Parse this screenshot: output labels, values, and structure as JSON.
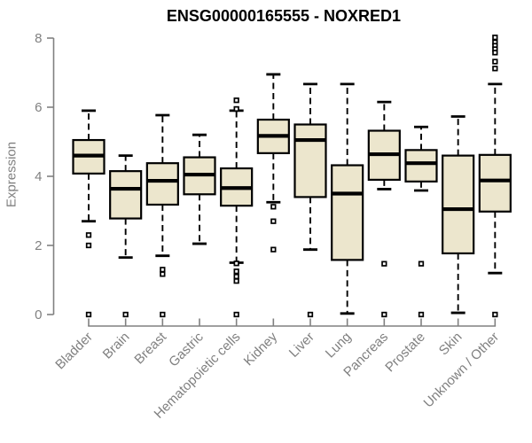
{
  "title": "ENSG00000165555 - NOXRED1",
  "styles": {
    "box_fill": "#ece6cd",
    "box_line_color": "#000000",
    "axis_color": "#808080",
    "label_color": "#808080",
    "title_color": "#000000",
    "background": "#ffffff"
  },
  "chart_data": {
    "type": "box",
    "title": "ENSG00000165555 - NOXRED1",
    "xlabel": "",
    "ylabel": "Expression",
    "ylim": [
      0,
      8
    ],
    "yticks": [
      0,
      2,
      4,
      6,
      8
    ],
    "grid": false,
    "legend": "none",
    "categories": [
      "Bladder",
      "Brain",
      "Breast",
      "Gastric",
      "Hematopoietic cells",
      "Kidney",
      "Liver",
      "Lung",
      "Pancreas",
      "Prostate",
      "Skin",
      "Unknown / Other"
    ],
    "boxes": [
      {
        "category": "Bladder",
        "whisker_low": 2.7,
        "q1": 4.08,
        "median": 4.6,
        "q3": 5.05,
        "whisker_high": 5.9,
        "outliers": [
          2.3,
          2.0,
          0.0
        ]
      },
      {
        "category": "Brain",
        "whisker_low": 1.65,
        "q1": 2.78,
        "median": 3.64,
        "q3": 4.15,
        "whisker_high": 4.6,
        "outliers": [
          0.0
        ]
      },
      {
        "category": "Breast",
        "whisker_low": 1.7,
        "q1": 3.18,
        "median": 3.87,
        "q3": 4.38,
        "whisker_high": 5.77,
        "outliers": [
          1.3,
          1.17,
          0.0
        ]
      },
      {
        "category": "Gastric",
        "whisker_low": 2.05,
        "q1": 3.48,
        "median": 4.05,
        "q3": 4.55,
        "whisker_high": 5.2,
        "outliers": []
      },
      {
        "category": "Hematopoietic cells",
        "whisker_low": 1.5,
        "q1": 3.15,
        "median": 3.66,
        "q3": 4.23,
        "whisker_high": 5.9,
        "outliers": [
          6.2,
          5.95,
          1.48,
          1.25,
          1.1,
          0.97,
          0.0
        ]
      },
      {
        "category": "Kidney",
        "whisker_low": 3.25,
        "q1": 4.67,
        "median": 5.17,
        "q3": 5.64,
        "whisker_high": 6.95,
        "outliers": [
          3.12,
          2.7,
          1.88
        ]
      },
      {
        "category": "Liver",
        "whisker_low": 1.88,
        "q1": 3.4,
        "median": 5.05,
        "q3": 5.5,
        "whisker_high": 6.67,
        "outliers": [
          0.0
        ]
      },
      {
        "category": "Lung",
        "whisker_low": 0.03,
        "q1": 1.58,
        "median": 3.5,
        "q3": 4.32,
        "whisker_high": 6.67,
        "outliers": []
      },
      {
        "category": "Pancreas",
        "whisker_low": 3.63,
        "q1": 3.9,
        "median": 4.64,
        "q3": 5.32,
        "whisker_high": 6.15,
        "outliers": [
          1.47,
          0.0
        ]
      },
      {
        "category": "Prostate",
        "whisker_low": 3.59,
        "q1": 3.85,
        "median": 4.38,
        "q3": 4.76,
        "whisker_high": 5.43,
        "outliers": [
          1.47,
          0.0
        ]
      },
      {
        "category": "Skin",
        "whisker_low": 0.05,
        "q1": 1.77,
        "median": 3.05,
        "q3": 4.6,
        "whisker_high": 5.73,
        "outliers": []
      },
      {
        "category": "Unknown / Other",
        "whisker_low": 1.2,
        "q1": 2.98,
        "median": 3.88,
        "q3": 4.62,
        "whisker_high": 6.67,
        "outliers": [
          8.02,
          7.88,
          7.78,
          7.68,
          7.58,
          7.32,
          7.12,
          0.0
        ]
      }
    ]
  }
}
